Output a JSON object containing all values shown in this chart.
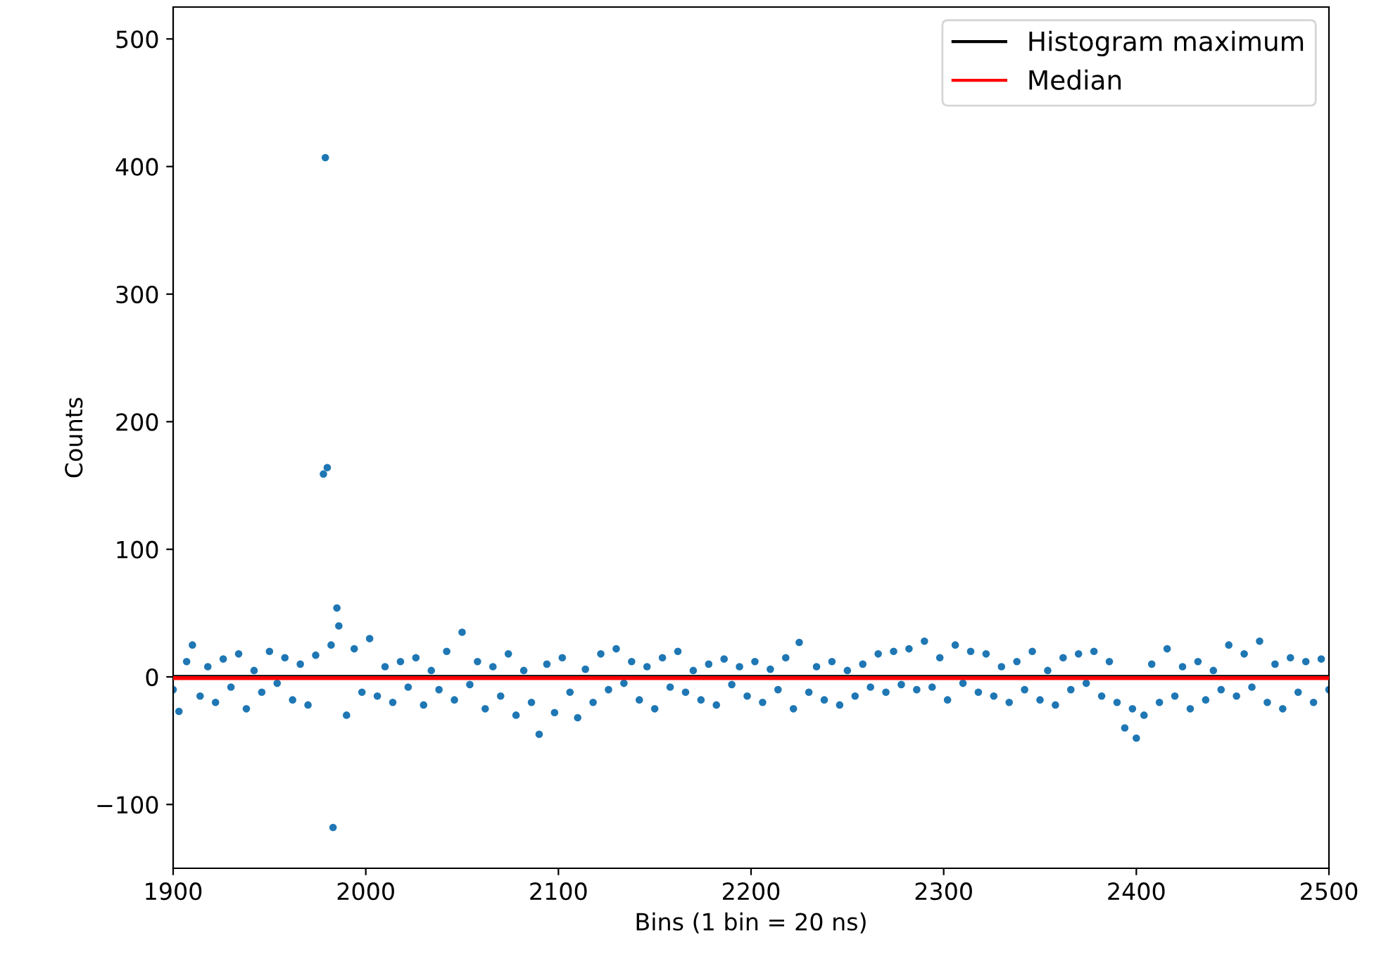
{
  "chart_data": {
    "type": "scatter",
    "xlabel": "Bins (1 bin = 20 ns)",
    "ylabel": "Counts",
    "xlim": [
      1900,
      2500
    ],
    "xticks": [
      1900,
      2000,
      2100,
      2200,
      2300,
      2400,
      2500
    ],
    "ylim": [
      -150,
      525
    ],
    "yticks": [
      {
        "value": -100,
        "label": "−100"
      },
      0,
      100,
      200,
      300,
      400,
      500
    ],
    "series": [
      {
        "color": "#1f77b4",
        "x": [
          1900,
          1903,
          1907,
          1910,
          1914,
          1918,
          1922,
          1926,
          1930,
          1934,
          1938,
          1942,
          1946,
          1950,
          1954,
          1958,
          1962,
          1966,
          1970,
          1974,
          1978,
          1979,
          1980,
          1982,
          1983,
          1985,
          1986,
          1990,
          1994,
          1998,
          2002,
          2006,
          2010,
          2014,
          2018,
          2022,
          2026,
          2030,
          2034,
          2038,
          2042,
          2046,
          2050,
          2054,
          2058,
          2062,
          2066,
          2070,
          2074,
          2078,
          2082,
          2086,
          2090,
          2094,
          2098,
          2102,
          2106,
          2110,
          2114,
          2118,
          2122,
          2126,
          2130,
          2134,
          2138,
          2142,
          2146,
          2150,
          2154,
          2158,
          2162,
          2166,
          2170,
          2174,
          2178,
          2182,
          2186,
          2190,
          2194,
          2198,
          2202,
          2206,
          2210,
          2214,
          2218,
          2222,
          2225,
          2230,
          2234,
          2238,
          2242,
          2246,
          2250,
          2254,
          2258,
          2262,
          2266,
          2270,
          2274,
          2278,
          2282,
          2286,
          2290,
          2294,
          2298,
          2302,
          2306,
          2310,
          2314,
          2318,
          2322,
          2326,
          2330,
          2334,
          2338,
          2342,
          2346,
          2350,
          2354,
          2358,
          2362,
          2366,
          2370,
          2374,
          2378,
          2382,
          2386,
          2390,
          2394,
          2398,
          2400,
          2404,
          2408,
          2412,
          2416,
          2420,
          2424,
          2428,
          2432,
          2436,
          2440,
          2444,
          2448,
          2452,
          2456,
          2460,
          2464,
          2468,
          2472,
          2476,
          2480,
          2484,
          2488,
          2492,
          2496,
          2500
        ],
        "values": [
          -10,
          -27,
          12,
          25,
          -15,
          8,
          -20,
          14,
          -8,
          18,
          -25,
          5,
          -12,
          20,
          -5,
          15,
          -18,
          10,
          -22,
          17,
          159,
          407,
          164,
          25,
          -118,
          54,
          40,
          -30,
          22,
          -12,
          30,
          -15,
          8,
          -20,
          12,
          -8,
          15,
          -22,
          5,
          -10,
          20,
          -18,
          35,
          -6,
          12,
          -25,
          8,
          -15,
          18,
          -30,
          5,
          -20,
          -45,
          10,
          -28,
          15,
          -12,
          -32,
          6,
          -20,
          18,
          -10,
          22,
          -5,
          12,
          -18,
          8,
          -25,
          15,
          -8,
          20,
          -12,
          5,
          -18,
          10,
          -22,
          14,
          -6,
          8,
          -15,
          12,
          -20,
          6,
          -10,
          15,
          -25,
          27,
          -12,
          8,
          -18,
          12,
          -22,
          5,
          -15,
          10,
          -8,
          18,
          -12,
          20,
          -6,
          22,
          -10,
          28,
          -8,
          15,
          -18,
          25,
          -5,
          20,
          -12,
          18,
          -15,
          8,
          -20,
          12,
          -10,
          20,
          -18,
          5,
          -22,
          15,
          -10,
          18,
          -5,
          20,
          -15,
          12,
          -20,
          -40,
          -25,
          -48,
          -30,
          10,
          -20,
          22,
          -15,
          8,
          -25,
          12,
          -18,
          5,
          -10,
          25,
          -15,
          18,
          -8,
          28,
          -20,
          10,
          -25,
          15,
          -12,
          12,
          -20,
          14,
          -10
        ]
      }
    ],
    "ref_lines": [
      {
        "axis": "y",
        "value": 0,
        "label": "Histogram maximum",
        "color": "#000000"
      },
      {
        "axis": "y",
        "value": -1,
        "label": "Median",
        "color": "#ff0000"
      }
    ],
    "marker": "circle",
    "legend": "top right",
    "grid": false
  }
}
